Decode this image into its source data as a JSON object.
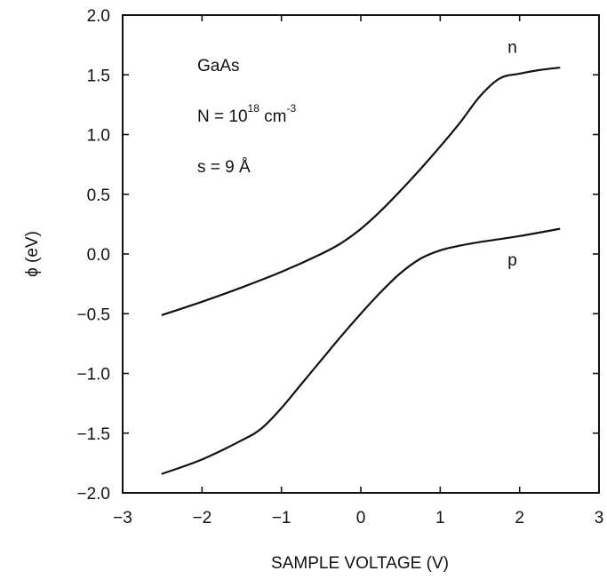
{
  "chart_data": {
    "type": "line",
    "xlabel": "SAMPLE VOLTAGE (V)",
    "ylabel": "ϕ (eV)",
    "xlim": [
      -3,
      3
    ],
    "ylim": [
      -2.0,
      2.0
    ],
    "x_ticks": [
      -3,
      -2,
      -1,
      0,
      1,
      2,
      3
    ],
    "x_tick_labels": [
      "−3",
      "−2",
      "−1",
      "0",
      "1",
      "2",
      "3"
    ],
    "y_ticks": [
      2.0,
      1.5,
      1.0,
      0.5,
      0.0,
      -0.5,
      -1.0,
      -1.5,
      -2.0
    ],
    "y_tick_labels": [
      "2.0",
      "1.5",
      "1.0",
      "0.5",
      "0.0",
      "−0.5",
      "−1.0",
      "−1.5",
      "−2.0"
    ],
    "annotations": {
      "material": "GaAs",
      "doping_prefix": "N = 10",
      "doping_exp": "18",
      "doping_unit": " cm",
      "doping_unit_exp": "-3",
      "spacing_prefix": "s = 9 ",
      "spacing_unit": "Å"
    },
    "series": [
      {
        "name": "n",
        "x": [
          -2.5,
          -2.0,
          -1.5,
          -1.0,
          -0.5,
          -0.25,
          0.0,
          0.25,
          0.5,
          0.75,
          1.0,
          1.25,
          1.5,
          1.75,
          2.0,
          2.25,
          2.5
        ],
        "y": [
          -0.51,
          -0.4,
          -0.28,
          -0.15,
          0.0,
          0.09,
          0.21,
          0.36,
          0.53,
          0.71,
          0.9,
          1.1,
          1.32,
          1.47,
          1.51,
          1.54,
          1.56
        ]
      },
      {
        "name": "p",
        "x": [
          -2.5,
          -2.0,
          -1.5,
          -1.25,
          -1.0,
          -0.75,
          -0.5,
          -0.25,
          0.0,
          0.25,
          0.5,
          0.75,
          1.0,
          1.25,
          1.5,
          2.0,
          2.5
        ],
        "y": [
          -1.84,
          -1.72,
          -1.56,
          -1.46,
          -1.29,
          -1.09,
          -0.89,
          -0.69,
          -0.5,
          -0.32,
          -0.16,
          -0.04,
          0.03,
          0.07,
          0.1,
          0.15,
          0.21
        ]
      }
    ]
  }
}
